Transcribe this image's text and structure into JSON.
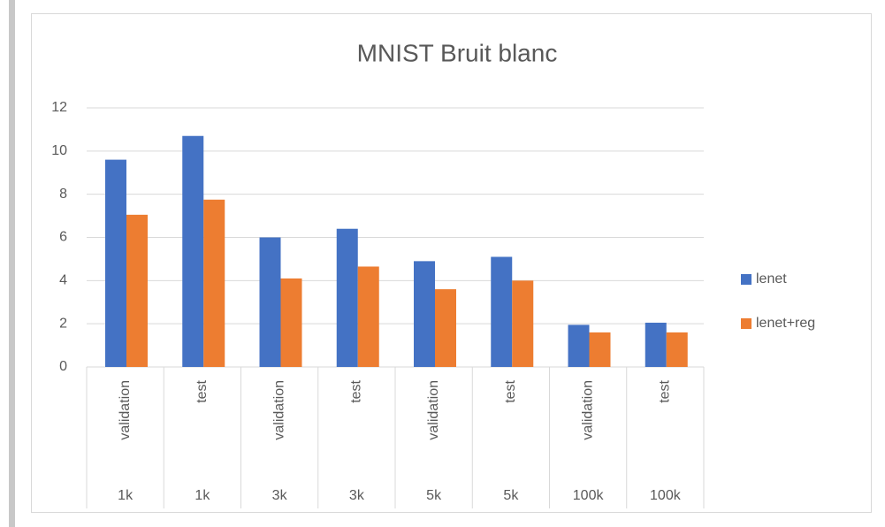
{
  "chart_data": {
    "type": "bar",
    "title": "MNIST Bruit blanc",
    "categories": [
      "validation",
      "test",
      "validation",
      "test",
      "validation",
      "test",
      "validation",
      "test"
    ],
    "groups": [
      "1k",
      "1k",
      "3k",
      "3k",
      "5k",
      "5k",
      "100k",
      "100k"
    ],
    "series": [
      {
        "name": "lenet",
        "color": "#4472c4",
        "values": [
          9.6,
          10.7,
          6.0,
          6.4,
          4.9,
          5.1,
          1.95,
          2.05
        ]
      },
      {
        "name": "lenet+reg",
        "color": "#ed7d31",
        "values": [
          7.05,
          7.75,
          4.1,
          4.65,
          3.6,
          4.0,
          1.6,
          1.6
        ]
      }
    ],
    "ylim": [
      0,
      12
    ],
    "yticks": [
      0,
      2,
      4,
      6,
      8,
      10,
      12
    ],
    "grid": true,
    "legend": "right"
  }
}
